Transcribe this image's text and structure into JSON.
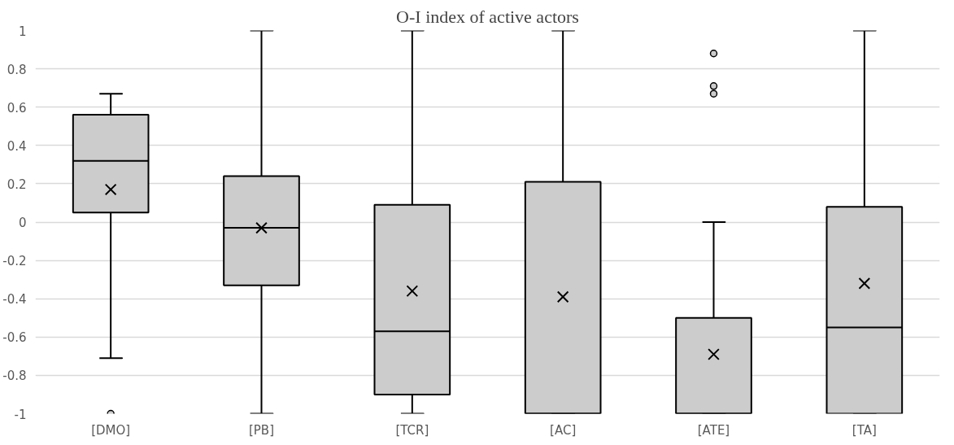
{
  "chart_data": {
    "type": "box",
    "title": "O-I index of active actors",
    "categories": [
      "[DMO]",
      "[PB]",
      "[TCR]",
      "[AC]",
      "[ATE]",
      "[TA]"
    ],
    "series": [
      {
        "color": "#cccccc",
        "boxes": [
          {
            "low": -0.71,
            "q1": 0.05,
            "median": 0.32,
            "q3": 0.56,
            "high": 0.67,
            "mean": 0.17,
            "outliers": [
              -1
            ]
          },
          {
            "low": -1,
            "q1": -0.33,
            "median": -0.03,
            "q3": 0.24,
            "high": 1,
            "mean": -0.03
          },
          {
            "low": -1,
            "q1": -0.9,
            "median": -0.57,
            "q3": 0.09,
            "high": 1,
            "mean": -0.36
          },
          {
            "low": -1,
            "q1": -1,
            "median": -1,
            "q3": 0.21,
            "high": 1,
            "mean": -0.39
          },
          {
            "low": -1,
            "q1": -1,
            "median": -1,
            "q3": -0.5,
            "high": 0,
            "mean": -0.69,
            "outliers": [
              0.88,
              0.71,
              0.67
            ]
          },
          {
            "low": -1,
            "q1": -1,
            "median": -0.55,
            "q3": 0.08,
            "high": 1,
            "mean": -0.32
          }
        ]
      }
    ],
    "ylim": [
      -1,
      1
    ],
    "yticks": [
      -1,
      -0.8,
      -0.6,
      -0.4,
      -0.2,
      0,
      0.2,
      0.4,
      0.6,
      0.8,
      1
    ],
    "grid": "y"
  }
}
